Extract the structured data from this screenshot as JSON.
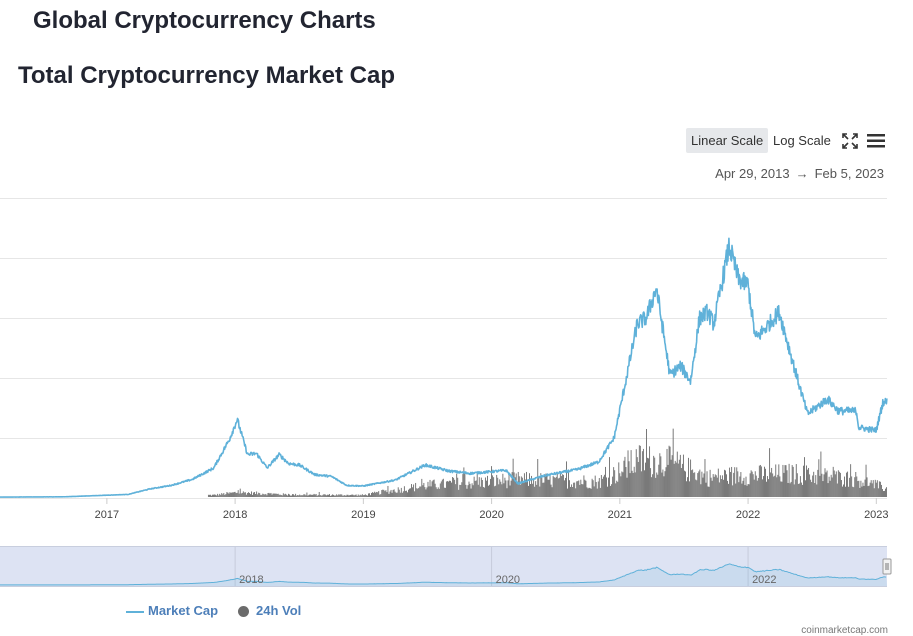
{
  "page": {
    "title": "Global Cryptocurrency Charts"
  },
  "section": {
    "title": "Total Cryptocurrency Market Cap"
  },
  "toolbar": {
    "linear_label": "Linear Scale",
    "log_label": "Log Scale",
    "active_scale": "linear",
    "fullscreen_icon": "fullscreen-icon",
    "menu_icon": "menu-icon"
  },
  "date_range": {
    "start": "Apr 29, 2013",
    "arrow": "→",
    "end": "Feb 5, 2023"
  },
  "legend": {
    "market_cap": "Market Cap",
    "volume": "24h Vol"
  },
  "credit": "coinmarketcap.com",
  "colors": {
    "line": "#5fb1d9",
    "volume": "#6b6b6b",
    "grid": "#e6e6e6",
    "navigator_fill": "#dde3f3",
    "navigator_line": "#5fb1d9",
    "active_button": "#e6e8eb",
    "legend_text": "#4d7fb9"
  },
  "chart_data": {
    "type": "line",
    "title": "Total Cryptocurrency Market Cap",
    "x_range": [
      "2016-03",
      "2023-02"
    ],
    "x_ticks": [
      "2017",
      "2018",
      "2019",
      "2020",
      "2021",
      "2022",
      "2023"
    ],
    "grid": true,
    "legend_position": "bottom-left",
    "series": [
      {
        "name": "Market Cap",
        "relative_scale": "fraction of plotted y-range",
        "points": [
          [
            "2016-03-01",
            0.003
          ],
          [
            "2016-09-01",
            0.004
          ],
          [
            "2017-03-01",
            0.012
          ],
          [
            "2017-05-01",
            0.03
          ],
          [
            "2017-07-01",
            0.042
          ],
          [
            "2017-09-01",
            0.062
          ],
          [
            "2017-11-01",
            0.1
          ],
          [
            "2017-12-15",
            0.195
          ],
          [
            "2018-01-07",
            0.262
          ],
          [
            "2018-02-06",
            0.145
          ],
          [
            "2018-03-01",
            0.148
          ],
          [
            "2018-04-01",
            0.1
          ],
          [
            "2018-05-05",
            0.145
          ],
          [
            "2018-06-01",
            0.115
          ],
          [
            "2018-07-01",
            0.11
          ],
          [
            "2018-08-15",
            0.078
          ],
          [
            "2018-10-01",
            0.072
          ],
          [
            "2018-11-15",
            0.042
          ],
          [
            "2019-01-01",
            0.04
          ],
          [
            "2019-04-01",
            0.06
          ],
          [
            "2019-06-25",
            0.11
          ],
          [
            "2019-09-01",
            0.09
          ],
          [
            "2019-11-01",
            0.082
          ],
          [
            "2020-02-12",
            0.092
          ],
          [
            "2020-03-15",
            0.048
          ],
          [
            "2020-06-01",
            0.075
          ],
          [
            "2020-09-01",
            0.095
          ],
          [
            "2020-11-01",
            0.12
          ],
          [
            "2020-12-15",
            0.2
          ],
          [
            "2021-01-10",
            0.345
          ],
          [
            "2021-02-20",
            0.58
          ],
          [
            "2021-03-15",
            0.6
          ],
          [
            "2021-04-14",
            0.7
          ],
          [
            "2021-05-22",
            0.41
          ],
          [
            "2021-06-22",
            0.44
          ],
          [
            "2021-07-20",
            0.39
          ],
          [
            "2021-08-15",
            0.6
          ],
          [
            "2021-09-07",
            0.62
          ],
          [
            "2021-09-25",
            0.58
          ],
          [
            "2021-11-08",
            0.84
          ],
          [
            "2021-12-04",
            0.73
          ],
          [
            "2022-01-01",
            0.71
          ],
          [
            "2022-01-22",
            0.53
          ],
          [
            "2022-02-15",
            0.56
          ],
          [
            "2022-03-29",
            0.62
          ],
          [
            "2022-05-12",
            0.43
          ],
          [
            "2022-06-18",
            0.28
          ],
          [
            "2022-08-14",
            0.33
          ],
          [
            "2022-09-15",
            0.29
          ],
          [
            "2022-11-05",
            0.29
          ],
          [
            "2022-11-12",
            0.235
          ],
          [
            "2022-12-31",
            0.225
          ],
          [
            "2023-01-20",
            0.32
          ],
          [
            "2023-02-05",
            0.32
          ]
        ]
      },
      {
        "name": "24h Vol",
        "relative_scale": "fraction of volume band height",
        "points": [
          [
            "2017-11-01",
            0.05
          ],
          [
            "2018-01-07",
            0.12
          ],
          [
            "2018-06-01",
            0.06
          ],
          [
            "2019-01-01",
            0.05
          ],
          [
            "2019-06-25",
            0.3
          ],
          [
            "2020-03-15",
            0.45
          ],
          [
            "2020-11-01",
            0.4
          ],
          [
            "2021-01-10",
            0.7
          ],
          [
            "2021-02-20",
            0.95
          ],
          [
            "2021-05-22",
            0.9
          ],
          [
            "2021-09-07",
            0.5
          ],
          [
            "2021-11-08",
            0.55
          ],
          [
            "2022-05-12",
            0.6
          ],
          [
            "2022-11-12",
            0.45
          ],
          [
            "2023-02-05",
            0.2
          ]
        ]
      }
    ]
  }
}
